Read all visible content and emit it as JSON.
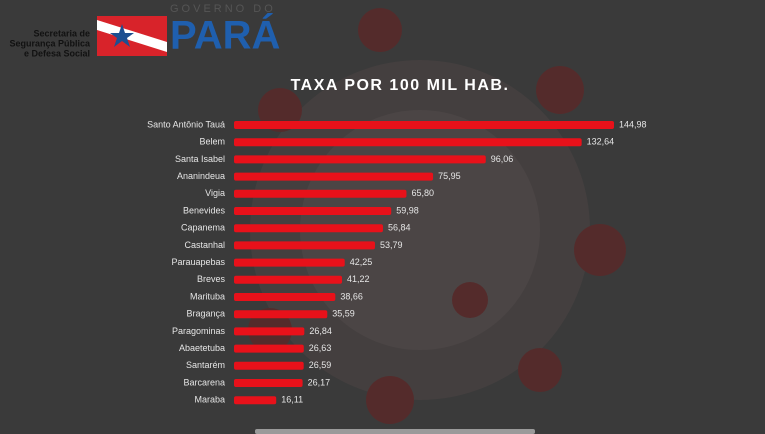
{
  "header": {
    "agency": [
      "Secretaria de",
      "Segurança Pública",
      "e Defesa Social"
    ],
    "government": "GOVERNO DO",
    "state": "PARÁ"
  },
  "chart_data": {
    "type": "bar",
    "orientation": "horizontal",
    "title": "TAXA POR 100 MIL HAB.",
    "categories": [
      "Santo Antônio Tauá",
      "Belem",
      "Santa Isabel",
      "Ananindeua",
      "Vigia",
      "Benevides",
      "Capanema",
      "Castanhal",
      "Parauapebas",
      "Breves",
      "Marituba",
      "Bragança",
      "Paragominas",
      "Abaetetuba",
      "Santarém",
      "Barcarena",
      "Maraba"
    ],
    "values": [
      144.98,
      132.64,
      96.06,
      75.95,
      65.8,
      59.98,
      56.84,
      53.79,
      42.25,
      41.22,
      38.66,
      35.59,
      26.84,
      26.63,
      26.59,
      26.17,
      16.11
    ],
    "value_labels": [
      "144,98",
      "132,64",
      "96,06",
      "75,95",
      "65,80",
      "59,98",
      "56,84",
      "53,79",
      "42,25",
      "41,22",
      "38,66",
      "35,59",
      "26,84",
      "26,63",
      "26,59",
      "26,17",
      "16,11"
    ],
    "color": "#e8111a"
  }
}
